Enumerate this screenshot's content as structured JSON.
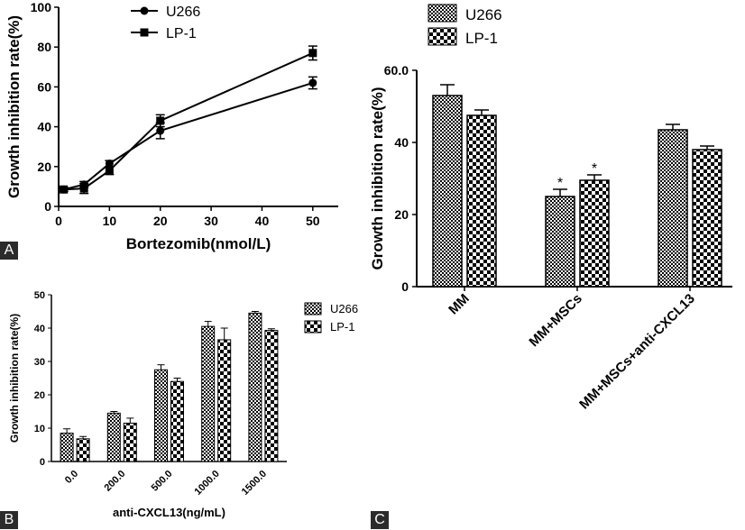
{
  "panels": {
    "a": "A",
    "b": "B",
    "c": "C"
  },
  "chart_data": [
    {
      "type": "line",
      "xlabel": "Bortezomib(nmol/L)",
      "ylabel": "Growth inhibition rate(%)",
      "xlim": [
        0,
        55
      ],
      "ylim": [
        0,
        100
      ],
      "xticks": [
        0,
        10,
        20,
        30,
        40,
        50
      ],
      "yticks": [
        0,
        20,
        40,
        60,
        80,
        100
      ],
      "legend": "top-center",
      "series": [
        {
          "name": "U266",
          "marker": "circle",
          "x": [
            1,
            5,
            10,
            20,
            50
          ],
          "y": [
            8.5,
            11,
            21.5,
            38,
            62
          ],
          "err": [
            1,
            1.5,
            1.5,
            4,
            3
          ]
        },
        {
          "name": "LP-1",
          "marker": "square",
          "x": [
            1,
            5,
            10,
            20,
            50
          ],
          "y": [
            8.5,
            9,
            18,
            43,
            77
          ],
          "err": [
            1,
            2.5,
            2,
            3,
            3.5
          ]
        }
      ]
    },
    {
      "type": "bar",
      "xlabel": "anti-CXCL13(ng/mL)",
      "ylabel": "Growth inhibition rate(%)",
      "categories": [
        "0.0",
        "200.0",
        "500.0",
        "1000.0",
        "1500.0"
      ],
      "ylim": [
        0,
        50
      ],
      "yticks": [
        0,
        10,
        20,
        30,
        40,
        50
      ],
      "legend": "top-right",
      "series": [
        {
          "name": "U266",
          "pattern": "dense-checker",
          "values": [
            8.5,
            14.5,
            27.5,
            40.5,
            44.5
          ],
          "err": [
            1.3,
            0.5,
            1.5,
            1.5,
            0.5
          ]
        },
        {
          "name": "LP-1",
          "pattern": "checker",
          "values": [
            6.8,
            11.5,
            24,
            36.5,
            39.3
          ],
          "err": [
            0.7,
            1.5,
            1,
            3.5,
            0.5
          ]
        }
      ]
    },
    {
      "type": "bar",
      "xlabel": "",
      "ylabel": "Growth inhibition rate(%)",
      "categories": [
        "MM",
        "MM+MSCs",
        "MM+MSCs+anti-CXCL13"
      ],
      "ylim": [
        0,
        60
      ],
      "yticks": [
        "0",
        "20",
        "40",
        "60.0"
      ],
      "legend": "top-left",
      "annotations": [
        "*",
        "*"
      ],
      "series": [
        {
          "name": "U266",
          "pattern": "dense-checker",
          "values": [
            53,
            25,
            43.5
          ],
          "err": [
            3,
            2,
            1.5
          ]
        },
        {
          "name": "LP-1",
          "pattern": "checker",
          "values": [
            47.5,
            29.5,
            38
          ],
          "err": [
            1.5,
            1.5,
            1
          ]
        }
      ]
    }
  ]
}
